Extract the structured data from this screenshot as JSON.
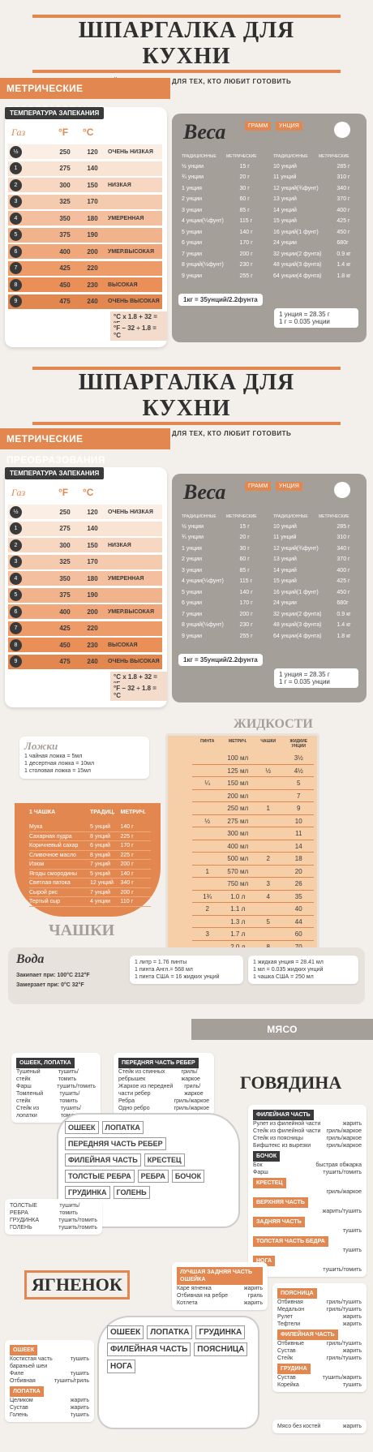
{
  "header": {
    "title": "ШПАРГАЛКА ДЛЯ КУХНИ",
    "subtitle": "УДОБНЫЙ СПРАВОЧНИК ДЛЯ ТЕХ, КТО ЛЮБИТ ГОТОВИТЬ"
  },
  "metric": {
    "ribbon": "МЕТРИЧЕСКИЕ ПРЕОБРАЗОВАНИЯ"
  },
  "oven": {
    "label": "ТЕМПЕРАТУРА ЗАПЕКАНИЯ",
    "head_gas": "Газ",
    "head_f": "°F",
    "head_c": "°C",
    "rows": [
      {
        "gas": "½",
        "f": "250",
        "c": "120",
        "t": "ОЧЕНЬ НИЗКАЯ"
      },
      {
        "gas": "1",
        "f": "275",
        "c": "140",
        "t": ""
      },
      {
        "gas": "2",
        "f": "300",
        "c": "150",
        "t": "НИЗКАЯ"
      },
      {
        "gas": "3",
        "f": "325",
        "c": "170",
        "t": ""
      },
      {
        "gas": "4",
        "f": "350",
        "c": "180",
        "t": "УМЕРЕННАЯ"
      },
      {
        "gas": "5",
        "f": "375",
        "c": "190",
        "t": ""
      },
      {
        "gas": "6",
        "f": "400",
        "c": "200",
        "t": "УМЕР.ВЫСОКАЯ"
      },
      {
        "gas": "7",
        "f": "425",
        "c": "220",
        "t": ""
      },
      {
        "gas": "8",
        "f": "450",
        "c": "230",
        "t": "ВЫСОКАЯ"
      },
      {
        "gas": "9",
        "f": "475",
        "c": "240",
        "t": "ОЧЕНЬ ВЫСОКАЯ"
      }
    ],
    "formula1": "°C x 1.8 + 32 = °F",
    "formula2": "°F − 32 ÷ 1.8 = °C"
  },
  "weight": {
    "title": "Веса",
    "tag1": "ГРАММ",
    "tag2": "УНЦИЯ",
    "col_trad": "ТРАДИЦИОННЫЕ",
    "col_metric": "МЕТРИЧЕСКИЕ",
    "left": [
      [
        "½ унции",
        "15 г"
      ],
      [
        "¾ унции",
        "20 г"
      ],
      [
        "1 унция",
        "30 г"
      ],
      [
        "2 унции",
        "60 г"
      ],
      [
        "3 унции",
        "85 г"
      ],
      [
        "4 унции(¼фунт)",
        "115 г"
      ],
      [
        "5 унции",
        "140 г"
      ],
      [
        "6 унции",
        "170 г"
      ],
      [
        "7 унции",
        "200 г"
      ],
      [
        "8 унций(½фунт)",
        "230 г"
      ],
      [
        "9 унции",
        "255 г"
      ]
    ],
    "right": [
      [
        "10 унций",
        "285 г"
      ],
      [
        "11 унций",
        "310 г"
      ],
      [
        "12 унций(¾фунт)",
        "340 г"
      ],
      [
        "13 унций",
        "370 г"
      ],
      [
        "14 унций",
        "400 г"
      ],
      [
        "15 унций",
        "425 г"
      ],
      [
        "16 унций(1 фунт)",
        "450 г"
      ],
      [
        "24 унции",
        "680г"
      ],
      [
        "32 унции(2 фунта)",
        "0.9 кг"
      ],
      [
        "48 унций(3 фунта)",
        "1.4 кг"
      ],
      [
        "64 унции(4 фунта)",
        "1.8 кг"
      ]
    ],
    "note": "1кг = 35унций/2.2фунта",
    "oz": "1 унция = 28.35 г",
    "g": "1 г = 0.035 унции"
  },
  "liquids": {
    "title": "ЖИДКОСТИ",
    "headers": [
      "ПИНТА",
      "МЕТРИЧ.",
      "ЧАШКИ",
      "ЖИДКИЕ УНЦИИ"
    ],
    "rows": [
      [
        "",
        "100 мл",
        "",
        "3½"
      ],
      [
        "",
        "125 мл",
        "½",
        "4½"
      ],
      [
        "¼",
        "150 мл",
        "",
        "5"
      ],
      [
        "",
        "200 мл",
        "",
        "7"
      ],
      [
        "",
        "250 мл",
        "1",
        "9"
      ],
      [
        "½",
        "275 мл",
        "",
        "10"
      ],
      [
        "",
        "300 мл",
        "",
        "11"
      ],
      [
        "",
        "400 мл",
        "",
        "14"
      ],
      [
        "",
        "500 мл",
        "2",
        "18"
      ],
      [
        "1",
        "570 мл",
        "",
        "20"
      ],
      [
        "",
        "750 мл",
        "3",
        "26"
      ],
      [
        "1¾",
        "1.0 л",
        "4",
        "35"
      ],
      [
        "2",
        "1.1 л",
        "",
        "40"
      ],
      [
        "",
        "1.3 л",
        "5",
        "44"
      ],
      [
        "3",
        "1.7 л",
        "",
        "60"
      ],
      [
        "",
        "2.0 л",
        "8",
        "70"
      ]
    ]
  },
  "spoons": {
    "title": "Ложки",
    "l1": "1 чайная ложка = 5мл",
    "l2": "1 десертная ложка = 10мл",
    "l3": "1 столовая ложка = 15мл"
  },
  "cups": {
    "title": "ЧАШКИ",
    "h1": "1 ЧАШКА",
    "h2": "ТРАДИЦ.",
    "h3": "МЕТРИЧ.",
    "rows": [
      [
        "Мука",
        "5 унций",
        "140 г"
      ],
      [
        "Сахарная пудра",
        "8 унций",
        "225 г"
      ],
      [
        "Коричневый сахар",
        "6 унций",
        "170 г"
      ],
      [
        "Сливочное масло",
        "8 унций",
        "225 г"
      ],
      [
        "Изюм",
        "7 унций",
        "200 г"
      ],
      [
        "Ягоды смородины",
        "5 унций",
        "140 г"
      ],
      [
        "Светлая патока",
        "12 унций",
        "340 г"
      ],
      [
        "Сырой рис",
        "7 унций",
        "200 г"
      ],
      [
        "Тертый сыр",
        "4 унции",
        "110 г"
      ]
    ]
  },
  "water": {
    "title": "Вода",
    "boil": "Закипает при: 100°C 212°F",
    "freeze": "Замерзает при: 0°C 32°F",
    "c1": [
      "1 литр = 1.76 пинты",
      "1 пинта Англ.= 568 мл",
      "1 пинта США = 16 жидких унций"
    ],
    "c2": [
      "1 жидкая унция = 28.41 мл",
      "1 мл = 0.035 жидких унций",
      "1 чашка США = 250 мл"
    ]
  },
  "meat": {
    "ribbon": "МЯСО",
    "beef_title": "ГОВЯДИНА",
    "lamb_title": "ЯГНЕНОК",
    "beef_cuts": [
      "ОШЕЕК",
      "ЛОПАТКА",
      "ПЕРЕДНЯЯ ЧАСТЬ РЕБЕР",
      "ФИЛЕЙНАЯ ЧАСТЬ",
      "КРЕСТЕЦ",
      "ТОЛСТЫЕ РЕБРА",
      "РЕБРА",
      "БОЧОК",
      "ГРУДИНКА",
      "ГОЛЕНЬ"
    ],
    "lamb_cuts": [
      "ОШЕЕК",
      "ЛОПАТКА",
      "ГРУДИНКА",
      "ФИЛЕЙНАЯ ЧАСТЬ",
      "ПОЯСНИЦА",
      "НОГА"
    ],
    "box1": {
      "head": "ОШЕЕК, ЛОПАТКА",
      "rows": [
        [
          "Тушеный стейк",
          "тушить/томить"
        ],
        [
          "Фарш",
          "тушить/томить"
        ],
        [
          "Томленый стейк",
          "тушить/томить"
        ],
        [
          "Стейк из лопатки",
          "тушить/томить"
        ]
      ]
    },
    "box2": {
      "head": "ПЕРЕДНЯЯ ЧАСТЬ РЕБЕР",
      "rows": [
        [
          "Стейк из спинных ребрышек",
          "гриль/жаркое"
        ],
        [
          "Жаркое из передней части ребер",
          "гриль/жаркое"
        ],
        [
          "Ребра",
          "гриль/жаркое"
        ],
        [
          "Одно ребро",
          "гриль/жаркое"
        ]
      ]
    },
    "box3": {
      "head": "ФИЛЕЙНАЯ ЧАСТЬ",
      "rows": [
        [
          "Рулет из филейной части",
          "жарить"
        ],
        [
          "Стейк из филейной части",
          "гриль/жаркое"
        ],
        [
          "Стейк из поясницы",
          "гриль/жаркое"
        ],
        [
          "Бифштекс из вырезки",
          "гриль/жаркое"
        ]
      ]
    },
    "box4": {
      "head": "БОЧОК",
      "rows": [
        [
          "Бок",
          "быстрая обжарка"
        ],
        [
          "Фарш",
          "тушить/томить"
        ]
      ]
    },
    "box5": {
      "head": "КРЕСТЕЦ",
      "rows": [
        [
          "",
          "гриль/жаркое"
        ]
      ]
    },
    "box6": {
      "head": "ВЕРХНЯЯ ЧАСТЬ",
      "rows": [
        [
          "",
          "жарить/тушить"
        ]
      ]
    },
    "box7": {
      "head": "ЗАДНЯЯ ЧАСТЬ",
      "rows": [
        [
          "",
          "тушить"
        ]
      ]
    },
    "box8": {
      "head": "ТОЛСТАЯ ЧАСТЬ БЕДРА",
      "rows": [
        [
          "",
          "тушить"
        ]
      ]
    },
    "box9": {
      "head": "НОГА",
      "rows": [
        [
          "",
          "тушить/томить"
        ]
      ]
    },
    "box10": {
      "rows": [
        [
          "ТОЛСТЫЕ РЕБРА",
          "тушить/томить"
        ],
        [
          "ГРУДИНКА",
          "тушить/томить"
        ],
        [
          "ГОЛЕНЬ",
          "тушить/томить"
        ]
      ]
    },
    "lamb_box1": {
      "head": "ЛУЧШАЯ ЗАДНЯЯ ЧАСТЬ ОШЕЙКА",
      "rows": [
        [
          "Каре ягненка",
          "жарить"
        ],
        [
          "Отбивная на ребре",
          "гриль"
        ],
        [
          "Котлета",
          "жарить"
        ]
      ]
    },
    "lamb_box2": {
      "head": "ПОЯСНИЦА",
      "rows": [
        [
          "Отбивная",
          "гриль/тушить"
        ],
        [
          "Медальон",
          "гриль/тушить"
        ],
        [
          "Рулет",
          "жарить"
        ],
        [
          "Тефтели",
          "жарить"
        ]
      ]
    },
    "lamb_box3": {
      "head": "ФИЛЕЙНАЯ ЧАСТЬ",
      "rows": [
        [
          "Отбивные",
          "гриль/тушить"
        ],
        [
          "Сустав",
          "жарить"
        ],
        [
          "Стейк",
          "гриль/тушить"
        ]
      ]
    },
    "lamb_box4": {
      "head": "ГРУДИНА",
      "rows": [
        [
          "Сустав",
          "тушить/жарить"
        ],
        [
          "Корейка",
          "тушить"
        ]
      ]
    },
    "lamb_box5": {
      "head": "ОШЕЕК",
      "rows": [
        [
          "Костистая часть бараньей шеи",
          "тушить"
        ],
        [
          "Филе",
          "тушить"
        ],
        [
          "Отбивная",
          "тушить/гриль"
        ]
      ]
    },
    "lamb_box6": {
      "head": "ЛОПАТКА",
      "rows": [
        [
          "Целиком",
          "жарить"
        ],
        [
          "Сустав",
          "жарить"
        ],
        [
          "Голень",
          "тушить"
        ]
      ]
    },
    "lamb_box7": {
      "rows": [
        [
          "Мясо без костей",
          "жарить"
        ]
      ]
    }
  }
}
